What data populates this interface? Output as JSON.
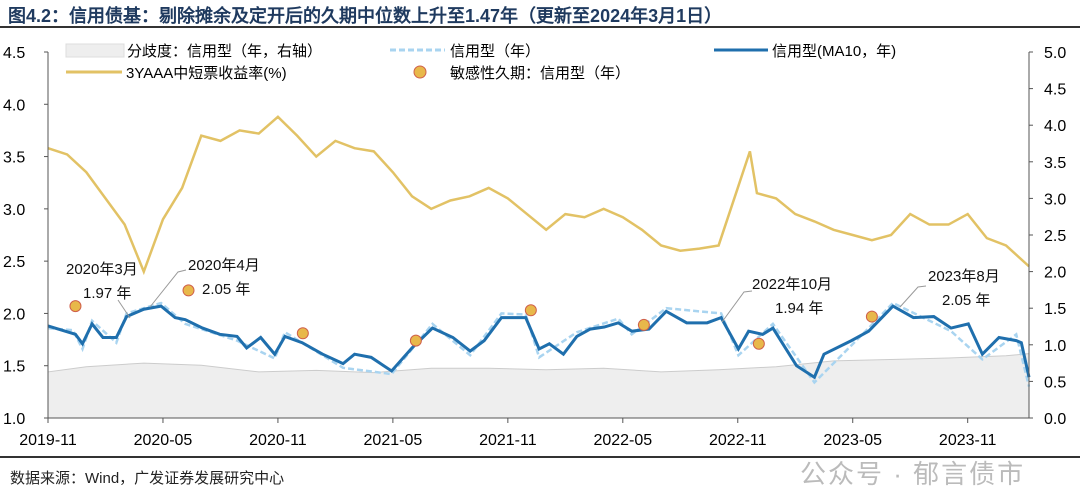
{
  "title": "图4.2：信用债基：剔除摊余及定开后的久期中位数上升至1.47年（更新至2024年3月1日）",
  "source": "数据来源：Wind，广发证券发展研究中心",
  "watermark": "公众号 · 郁言债市",
  "chart_data": {
    "type": "line",
    "xlim": [
      "2019-11-01",
      "2024-02-07"
    ],
    "x_ticks": [
      "2019-11",
      "2020-05",
      "2020-11",
      "2021-05",
      "2021-11",
      "2022-05",
      "2022-11",
      "2023-05",
      "2023-11"
    ],
    "ylim_left": [
      1.0,
      4.5
    ],
    "yticks_left": [
      "1.0",
      "1.5",
      "2.0",
      "2.5",
      "3.0",
      "3.5",
      "4.0",
      "4.5"
    ],
    "ylim_right": [
      0.0,
      5.0
    ],
    "yticks_right": [
      "0.0",
      "0.5",
      "1.0",
      "1.5",
      "2.0",
      "2.5",
      "3.0",
      "3.5",
      "4.0",
      "4.5",
      "5.0"
    ],
    "grid": false,
    "legend_placement": "top",
    "legend": [
      "分歧度：信用型（年，右轴）",
      "信用型（年）",
      "信用型(MA10，年)",
      "3YAAA中短票收益率(%)",
      "敏感性久期：信用型（年）"
    ],
    "colors": {
      "dispersion": "#eeeeee",
      "credit": "#a9d4f0",
      "ma10": "#1f6fad",
      "yield": "#e2c265",
      "dots": "#e8b84a",
      "dot_edge": "#d0604a"
    },
    "series": {
      "dispersion": {
        "name": "分歧度：信用型（年，右轴）",
        "axis": "right",
        "points": [
          [
            "2019-11-01",
            0.63
          ],
          [
            "2020-01-01",
            0.7
          ],
          [
            "2020-04-01",
            0.75
          ],
          [
            "2020-07-01",
            0.72
          ],
          [
            "2020-10-01",
            0.63
          ],
          [
            "2021-01-01",
            0.65
          ],
          [
            "2021-04-01",
            0.62
          ],
          [
            "2021-07-01",
            0.68
          ],
          [
            "2021-10-01",
            0.68
          ],
          [
            "2022-01-01",
            0.66
          ],
          [
            "2022-04-01",
            0.68
          ],
          [
            "2022-07-01",
            0.63
          ],
          [
            "2022-10-01",
            0.66
          ],
          [
            "2023-01-01",
            0.7
          ],
          [
            "2023-04-01",
            0.78
          ],
          [
            "2023-07-01",
            0.8
          ],
          [
            "2023-10-01",
            0.82
          ],
          [
            "2024-01-01",
            0.85
          ],
          [
            "2024-02-07",
            0.88
          ]
        ]
      },
      "ma10": {
        "name": "信用型(MA10，年)",
        "axis": "left",
        "points": [
          [
            "2019-11-01",
            1.88
          ],
          [
            "2019-12-14",
            1.8
          ],
          [
            "2019-12-25",
            1.71
          ],
          [
            "2020-01-10",
            1.9
          ],
          [
            "2020-01-27",
            1.77
          ],
          [
            "2020-02-18",
            1.77
          ],
          [
            "2020-03-04",
            1.97
          ],
          [
            "2020-04-01",
            2.04
          ],
          [
            "2020-04-28",
            2.07
          ],
          [
            "2020-05-20",
            1.96
          ],
          [
            "2020-06-06",
            1.94
          ],
          [
            "2020-07-03",
            1.86
          ],
          [
            "2020-07-30",
            1.8
          ],
          [
            "2020-08-27",
            1.78
          ],
          [
            "2020-09-12",
            1.67
          ],
          [
            "2020-10-04",
            1.77
          ],
          [
            "2020-10-26",
            1.61
          ],
          [
            "2020-11-12",
            1.78
          ],
          [
            "2020-12-09",
            1.72
          ],
          [
            "2021-01-11",
            1.61
          ],
          [
            "2021-02-13",
            1.52
          ],
          [
            "2021-03-01",
            1.61
          ],
          [
            "2021-03-27",
            1.58
          ],
          [
            "2021-04-29",
            1.45
          ],
          [
            "2021-06-01",
            1.67
          ],
          [
            "2021-07-03",
            1.86
          ],
          [
            "2021-08-05",
            1.77
          ],
          [
            "2021-09-02",
            1.64
          ],
          [
            "2021-09-24",
            1.74
          ],
          [
            "2021-10-21",
            1.96
          ],
          [
            "2021-11-29",
            1.96
          ],
          [
            "2021-12-20",
            1.66
          ],
          [
            "2022-01-06",
            1.71
          ],
          [
            "2022-01-28",
            1.61
          ],
          [
            "2022-02-19",
            1.78
          ],
          [
            "2022-03-10",
            1.85
          ],
          [
            "2022-04-02",
            1.87
          ],
          [
            "2022-04-24",
            1.91
          ],
          [
            "2022-05-15",
            1.83
          ],
          [
            "2022-06-12",
            1.85
          ],
          [
            "2022-07-09",
            2.02
          ],
          [
            "2022-08-11",
            1.91
          ],
          [
            "2022-09-13",
            1.91
          ],
          [
            "2022-10-05",
            1.96
          ],
          [
            "2022-11-02",
            1.66
          ],
          [
            "2022-11-18",
            1.83
          ],
          [
            "2022-12-10",
            1.8
          ],
          [
            "2022-12-26",
            1.86
          ],
          [
            "2023-02-03",
            1.5
          ],
          [
            "2023-03-01",
            1.39
          ],
          [
            "2023-03-16",
            1.61
          ],
          [
            "2023-04-29",
            1.74
          ],
          [
            "2023-05-26",
            1.83
          ],
          [
            "2023-07-04",
            2.07
          ],
          [
            "2023-08-06",
            1.96
          ],
          [
            "2023-09-08",
            1.97
          ],
          [
            "2023-10-05",
            1.86
          ],
          [
            "2023-11-02",
            1.9
          ],
          [
            "2023-11-24",
            1.61
          ],
          [
            "2023-12-20",
            1.77
          ],
          [
            "2024-01-17",
            1.74
          ],
          [
            "2024-01-25",
            1.72
          ],
          [
            "2024-02-07",
            1.39
          ]
        ]
      },
      "credit": {
        "name": "信用型（年）",
        "axis": "left",
        "points": [
          [
            "2019-11-01",
            1.86
          ],
          [
            "2019-12-10",
            1.84
          ],
          [
            "2019-12-25",
            1.66
          ],
          [
            "2020-01-10",
            1.93
          ],
          [
            "2020-02-18",
            1.72
          ],
          [
            "2020-03-04",
            2.0
          ],
          [
            "2020-04-28",
            2.1
          ],
          [
            "2020-06-06",
            1.9
          ],
          [
            "2020-08-27",
            1.74
          ],
          [
            "2020-10-26",
            1.57
          ],
          [
            "2020-11-12",
            1.82
          ],
          [
            "2021-02-13",
            1.48
          ],
          [
            "2021-04-29",
            1.42
          ],
          [
            "2021-07-03",
            1.9
          ],
          [
            "2021-09-02",
            1.6
          ],
          [
            "2021-10-21",
            2.0
          ],
          [
            "2021-11-29",
            1.99
          ],
          [
            "2021-12-20",
            1.58
          ],
          [
            "2022-02-19",
            1.82
          ],
          [
            "2022-04-24",
            1.95
          ],
          [
            "2022-05-15",
            1.8
          ],
          [
            "2022-07-09",
            2.05
          ],
          [
            "2022-10-05",
            2.0
          ],
          [
            "2022-11-02",
            1.6
          ],
          [
            "2022-12-26",
            1.9
          ],
          [
            "2023-03-01",
            1.34
          ],
          [
            "2023-05-26",
            1.86
          ],
          [
            "2023-07-04",
            2.1
          ],
          [
            "2023-10-05",
            1.83
          ],
          [
            "2023-11-24",
            1.56
          ],
          [
            "2024-01-17",
            1.8
          ],
          [
            "2024-02-07",
            1.3
          ]
        ]
      },
      "yield": {
        "name": "3YAAA中短票收益率(%)",
        "axis": "left",
        "points": [
          [
            "2019-11-01",
            3.58
          ],
          [
            "2019-12-01",
            3.52
          ],
          [
            "2020-01-01",
            3.35
          ],
          [
            "2020-02-01",
            3.1
          ],
          [
            "2020-03-01",
            2.85
          ],
          [
            "2020-04-01",
            2.4
          ],
          [
            "2020-05-01",
            2.9
          ],
          [
            "2020-06-01",
            3.2
          ],
          [
            "2020-07-01",
            3.7
          ],
          [
            "2020-08-01",
            3.65
          ],
          [
            "2020-09-01",
            3.75
          ],
          [
            "2020-10-01",
            3.72
          ],
          [
            "2020-11-01",
            3.88
          ],
          [
            "2020-12-01",
            3.7
          ],
          [
            "2021-01-01",
            3.5
          ],
          [
            "2021-02-01",
            3.65
          ],
          [
            "2021-03-01",
            3.58
          ],
          [
            "2021-04-01",
            3.55
          ],
          [
            "2021-05-01",
            3.35
          ],
          [
            "2021-06-01",
            3.12
          ],
          [
            "2021-07-01",
            3.0
          ],
          [
            "2021-08-01",
            3.08
          ],
          [
            "2021-09-01",
            3.12
          ],
          [
            "2021-10-01",
            3.2
          ],
          [
            "2021-11-01",
            3.1
          ],
          [
            "2021-12-01",
            2.95
          ],
          [
            "2022-01-01",
            2.8
          ],
          [
            "2022-02-01",
            2.95
          ],
          [
            "2022-03-01",
            2.92
          ],
          [
            "2022-04-01",
            3.0
          ],
          [
            "2022-05-01",
            2.92
          ],
          [
            "2022-06-01",
            2.8
          ],
          [
            "2022-07-01",
            2.65
          ],
          [
            "2022-08-01",
            2.6
          ],
          [
            "2022-09-01",
            2.62
          ],
          [
            "2022-10-01",
            2.65
          ],
          [
            "2022-11-01",
            3.2
          ],
          [
            "2022-11-20",
            3.55
          ],
          [
            "2022-12-01",
            3.15
          ],
          [
            "2023-01-01",
            3.1
          ],
          [
            "2023-02-01",
            2.95
          ],
          [
            "2023-03-01",
            2.88
          ],
          [
            "2023-04-01",
            2.8
          ],
          [
            "2023-05-01",
            2.75
          ],
          [
            "2023-06-01",
            2.7
          ],
          [
            "2023-07-01",
            2.75
          ],
          [
            "2023-08-01",
            2.95
          ],
          [
            "2023-09-01",
            2.85
          ],
          [
            "2023-10-01",
            2.85
          ],
          [
            "2023-11-01",
            2.95
          ],
          [
            "2023-12-01",
            2.72
          ],
          [
            "2024-01-01",
            2.65
          ],
          [
            "2024-02-07",
            2.45
          ]
        ]
      },
      "sensitivity": {
        "name": "敏感性久期：信用型（年）",
        "axis": "left",
        "points": [
          [
            "2019-12-14",
            2.07
          ],
          [
            "2020-06-11",
            2.22
          ],
          [
            "2020-12-10",
            1.81
          ],
          [
            "2021-06-07",
            1.74
          ],
          [
            "2021-12-07",
            2.03
          ],
          [
            "2022-06-04",
            1.89
          ],
          [
            "2022-12-04",
            1.71
          ],
          [
            "2023-06-01",
            1.97
          ]
        ]
      }
    },
    "annotations": [
      {
        "line1": "2020年3月",
        "line2": "1.97 年"
      },
      {
        "line1": "2020年4月",
        "line2": "2.05 年"
      },
      {
        "line1": "2022年10月",
        "line2": "1.94 年"
      },
      {
        "line1": "2023年8月",
        "line2": "2.05 年"
      }
    ]
  }
}
